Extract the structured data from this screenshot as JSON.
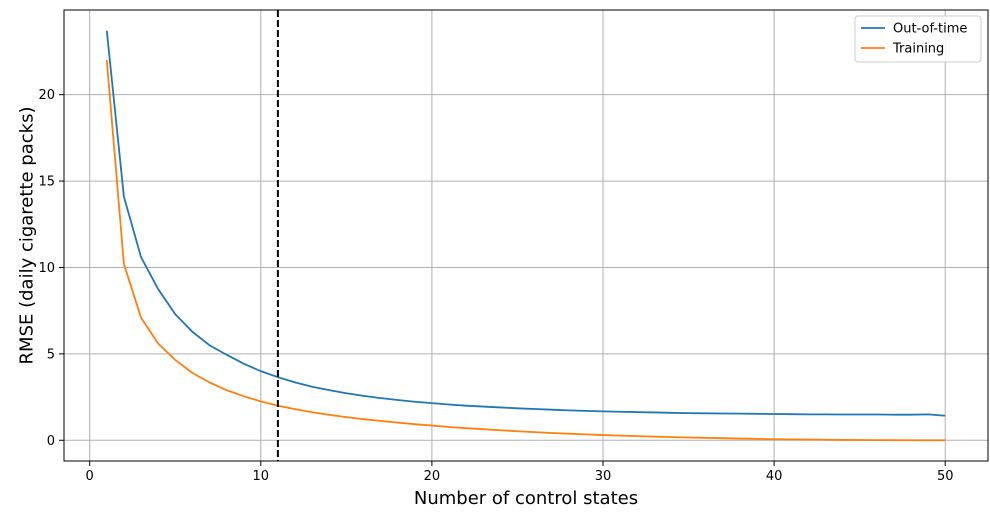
{
  "chart_data": {
    "type": "line",
    "xlabel": "Number of control states",
    "ylabel": "RMSE (daily cigarette packs)",
    "xlim": [
      -1.5,
      52.5
    ],
    "ylim": [
      -1.2,
      24.9
    ],
    "xticks": [
      0,
      10,
      20,
      30,
      40,
      50
    ],
    "yticks": [
      0,
      5,
      10,
      15,
      20
    ],
    "grid": true,
    "legend_position": "top-right",
    "vline": {
      "x": 11,
      "style": "dashed",
      "color": "#000000"
    },
    "x": [
      1,
      2,
      3,
      4,
      5,
      6,
      7,
      8,
      9,
      10,
      11,
      12,
      13,
      14,
      15,
      16,
      17,
      18,
      19,
      20,
      21,
      22,
      23,
      24,
      25,
      26,
      27,
      28,
      29,
      30,
      31,
      32,
      33,
      34,
      35,
      36,
      37,
      38,
      39,
      40,
      41,
      42,
      43,
      44,
      45,
      46,
      47,
      48,
      49,
      50
    ],
    "series": [
      {
        "name": "Out-of-time",
        "color": "#1f77b4",
        "values": [
          23.7,
          14.1,
          10.6,
          8.75,
          7.3,
          6.28,
          5.5,
          4.95,
          4.43,
          4.0,
          3.65,
          3.35,
          3.1,
          2.9,
          2.72,
          2.57,
          2.44,
          2.33,
          2.23,
          2.15,
          2.07,
          2.0,
          1.95,
          1.9,
          1.85,
          1.81,
          1.77,
          1.73,
          1.7,
          1.67,
          1.65,
          1.63,
          1.61,
          1.59,
          1.57,
          1.56,
          1.55,
          1.54,
          1.53,
          1.52,
          1.51,
          1.5,
          1.5,
          1.49,
          1.49,
          1.49,
          1.48,
          1.48,
          1.5,
          1.42
        ]
      },
      {
        "name": "Training",
        "color": "#ff7f0e",
        "values": [
          22.0,
          10.2,
          7.1,
          5.6,
          4.65,
          3.9,
          3.35,
          2.9,
          2.55,
          2.25,
          2.0,
          1.8,
          1.62,
          1.47,
          1.34,
          1.22,
          1.12,
          1.02,
          0.93,
          0.85,
          0.77,
          0.7,
          0.64,
          0.58,
          0.52,
          0.47,
          0.42,
          0.38,
          0.34,
          0.3,
          0.27,
          0.24,
          0.21,
          0.18,
          0.16,
          0.14,
          0.12,
          0.1,
          0.08,
          0.06,
          0.05,
          0.04,
          0.03,
          0.02,
          0.015,
          0.01,
          0.005,
          0.0,
          0.0,
          0.0
        ]
      }
    ]
  }
}
